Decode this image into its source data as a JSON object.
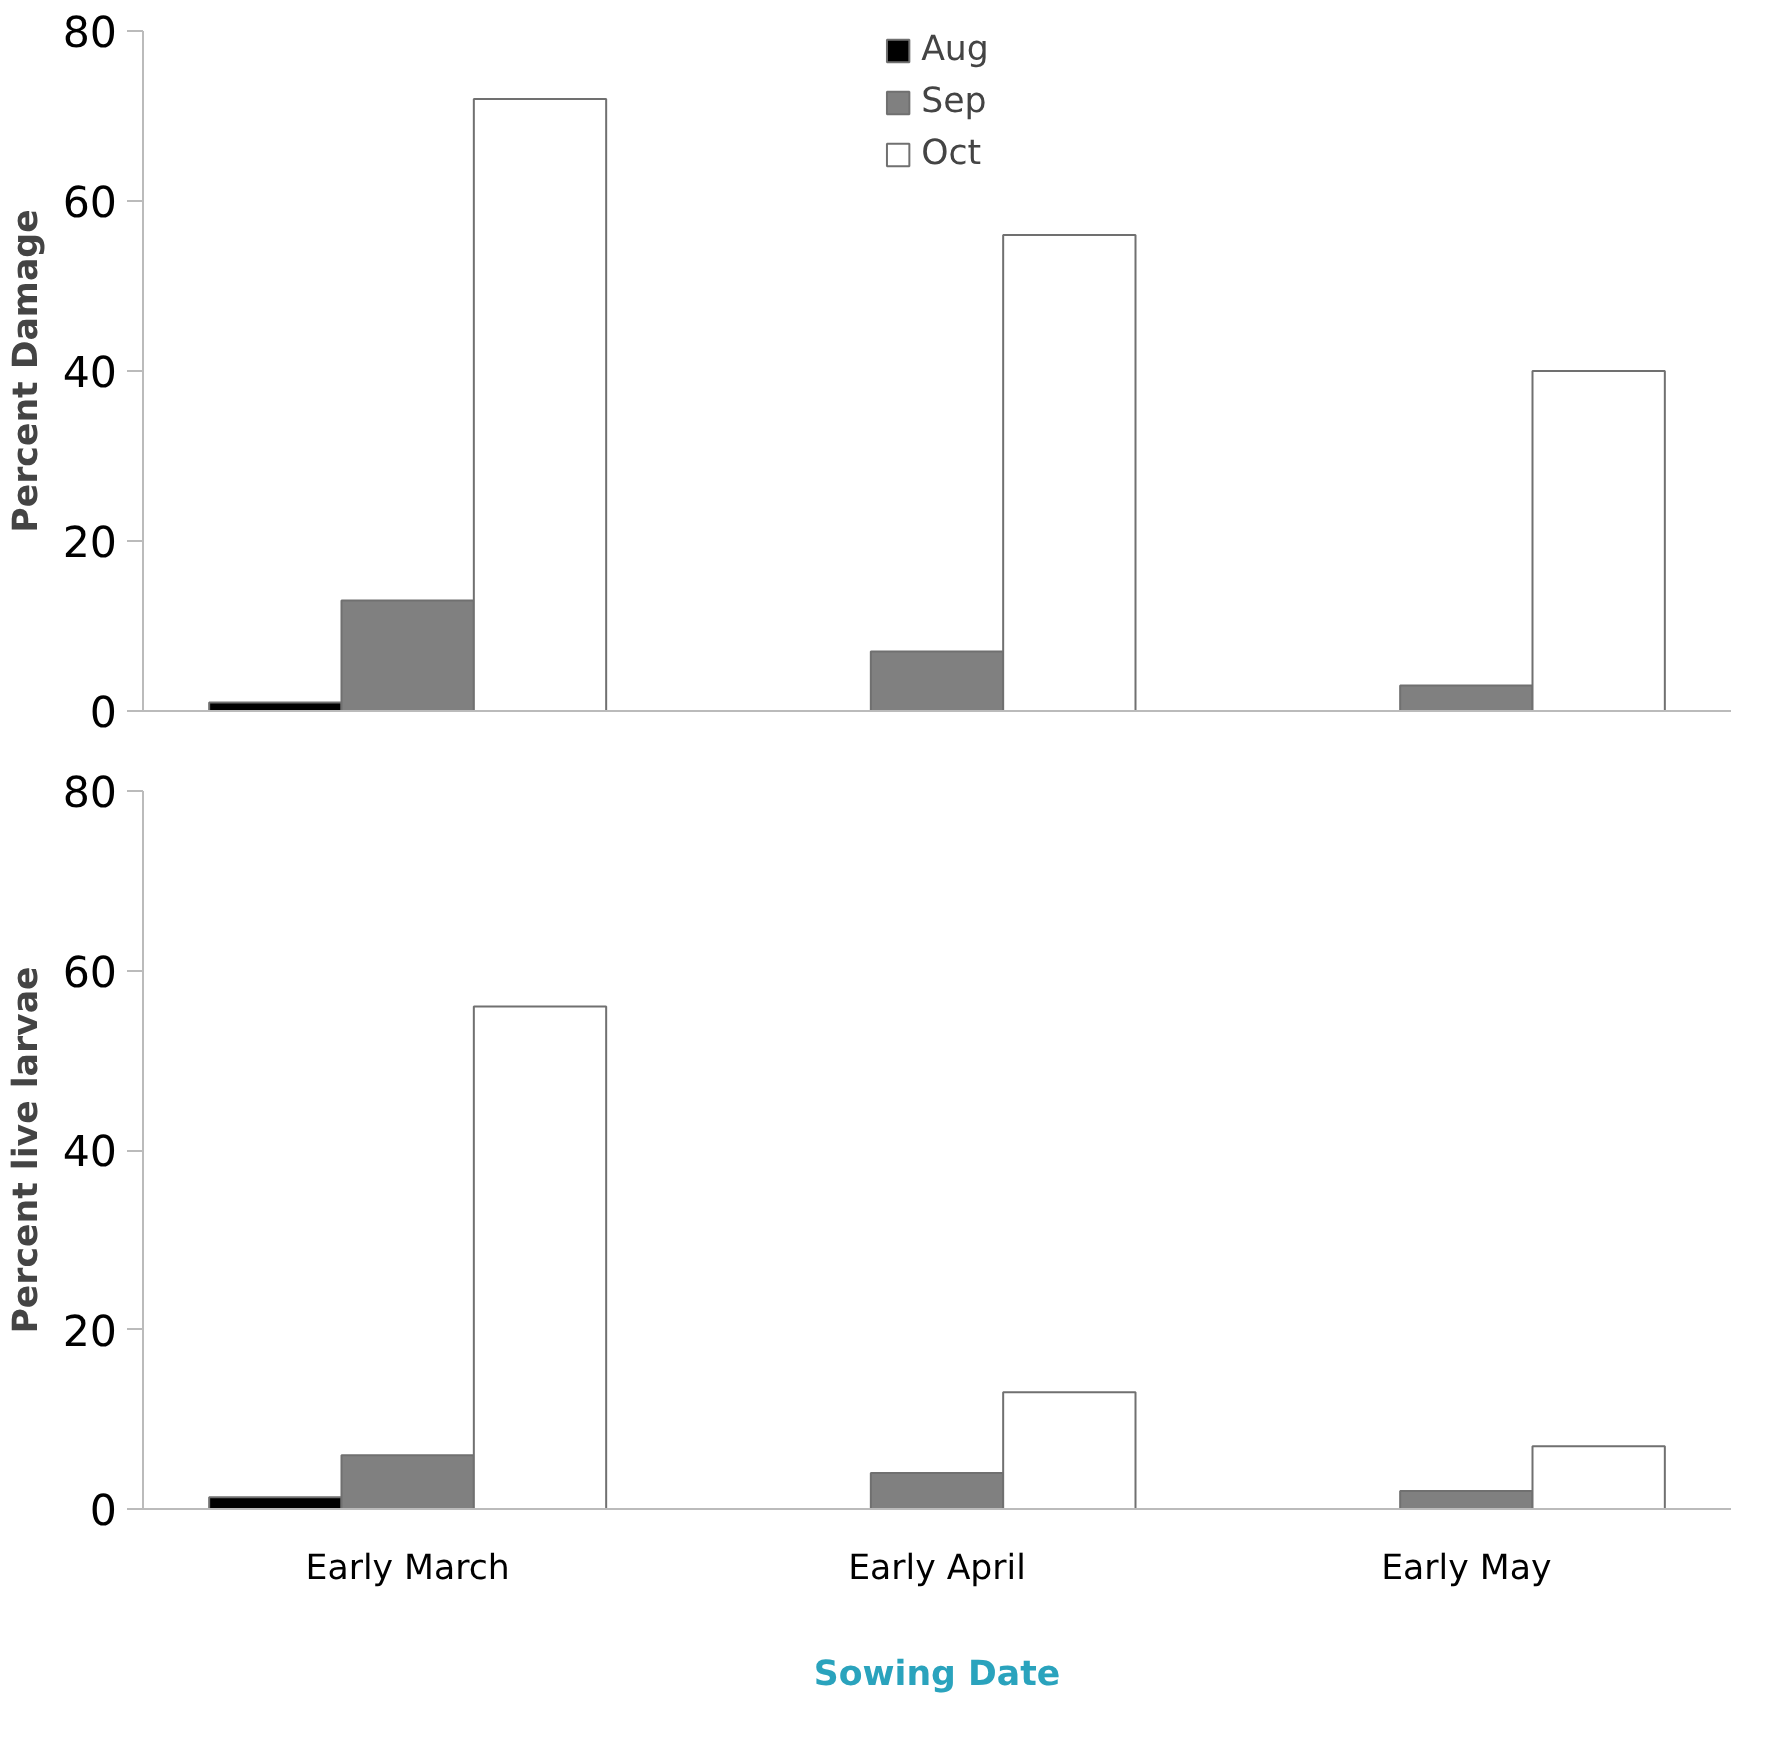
{
  "chart_data": [
    {
      "type": "bar",
      "ylabel": "Percent Damage",
      "categories": [
        null,
        null,
        null
      ],
      "ylim": [
        0,
        80
      ],
      "yticks": [
        0,
        20,
        40,
        60,
        80
      ],
      "grid": false,
      "legend": "top",
      "tick_labels": "y",
      "series": [
        {
          "name": "Aug",
          "color": "#000000",
          "values": [
            1,
            null,
            null
          ]
        },
        {
          "name": "Sep",
          "color": "#808080",
          "values": [
            13,
            7,
            3
          ]
        },
        {
          "name": "Oct",
          "color": "#ffffff",
          "values": [
            72,
            56,
            40
          ]
        }
      ]
    },
    {
      "type": "bar",
      "ylabel": "Percent live larvae",
      "xlabel": "Sowing Date",
      "categories": [
        "Early March",
        "Early April",
        "Early May"
      ],
      "ylim": [
        0,
        80
      ],
      "yticks": [
        0,
        20,
        40,
        60,
        80
      ],
      "grid": false,
      "legend": false,
      "series": [
        {
          "color": "#000000",
          "values": [
            1.3,
            null,
            null
          ]
        },
        {
          "color": "#808080",
          "values": [
            6,
            4,
            2
          ]
        },
        {
          "color": "#ffffff",
          "values": [
            56,
            13,
            7
          ]
        }
      ]
    }
  ]
}
